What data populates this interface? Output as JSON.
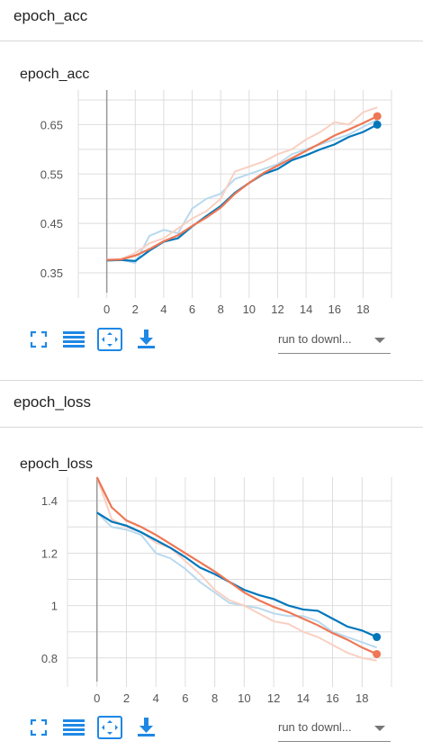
{
  "sections": [
    {
      "header": "epoch_acc",
      "card_title": "epoch_acc",
      "run_select": "run to downl..."
    },
    {
      "header": "epoch_loss",
      "card_title": "epoch_loss",
      "run_select": "run to downl..."
    }
  ],
  "toolbar": {
    "icons": [
      "fullscreen-icon",
      "list-icon",
      "fit-domain-icon",
      "download-icon"
    ]
  },
  "colors": {
    "blue": "#0077bb",
    "orange": "#ee7755",
    "blue_light": "#b9d9ee",
    "orange_light": "#f8d0c2",
    "grid": "#dddddd"
  },
  "chart_data": [
    {
      "type": "line",
      "title": "epoch_acc",
      "x": [
        0,
        1,
        2,
        3,
        4,
        5,
        6,
        7,
        8,
        9,
        10,
        11,
        12,
        13,
        14,
        15,
        16,
        17,
        18,
        19
      ],
      "x_ticks": [
        "0",
        "2",
        "4",
        "6",
        "8",
        "10",
        "12",
        "14",
        "16",
        "18"
      ],
      "y_ticks": [
        "0.35",
        "0.45",
        "0.55",
        "0.65"
      ],
      "xlim": [
        -2,
        20
      ],
      "ylim": [
        0.31,
        0.72
      ],
      "grid": true,
      "series": [
        {
          "color": "#0077bb",
          "smoothed": [
            0.375,
            0.376,
            0.374,
            0.395,
            0.413,
            0.42,
            0.444,
            0.465,
            0.485,
            0.512,
            0.532,
            0.55,
            0.56,
            0.578,
            0.588,
            0.6,
            0.61,
            0.625,
            0.635,
            0.65
          ],
          "raw": [
            0.375,
            0.377,
            0.37,
            0.425,
            0.437,
            0.43,
            0.48,
            0.5,
            0.51,
            0.54,
            0.55,
            0.56,
            0.57,
            0.59,
            0.6,
            0.61,
            0.62,
            0.63,
            0.645,
            0.66
          ]
        },
        {
          "color": "#ee7755",
          "smoothed": [
            0.376,
            0.377,
            0.385,
            0.398,
            0.414,
            0.426,
            0.445,
            0.462,
            0.482,
            0.51,
            0.532,
            0.552,
            0.567,
            0.582,
            0.597,
            0.612,
            0.628,
            0.64,
            0.653,
            0.667
          ],
          "raw": [
            0.377,
            0.378,
            0.39,
            0.41,
            0.42,
            0.44,
            0.46,
            0.475,
            0.5,
            0.555,
            0.565,
            0.575,
            0.59,
            0.6,
            0.62,
            0.635,
            0.655,
            0.65,
            0.675,
            0.685
          ]
        }
      ]
    },
    {
      "type": "line",
      "title": "epoch_loss",
      "x": [
        0,
        1,
        2,
        3,
        4,
        5,
        6,
        7,
        8,
        9,
        10,
        11,
        12,
        13,
        14,
        15,
        16,
        17,
        18,
        19
      ],
      "x_ticks": [
        "0",
        "2",
        "4",
        "6",
        "8",
        "10",
        "12",
        "14",
        "16",
        "18"
      ],
      "y_ticks": [
        "0.8",
        "1",
        "1.2",
        "1.4"
      ],
      "xlim": [
        -2,
        20
      ],
      "ylim": [
        0.71,
        1.49
      ],
      "grid": true,
      "series": [
        {
          "color": "#0077bb",
          "smoothed": [
            1.355,
            1.32,
            1.305,
            1.28,
            1.25,
            1.22,
            1.185,
            1.145,
            1.12,
            1.09,
            1.06,
            1.04,
            1.025,
            1.0,
            0.985,
            0.98,
            0.95,
            0.92,
            0.905,
            0.88
          ],
          "raw": [
            1.355,
            1.3,
            1.29,
            1.27,
            1.2,
            1.18,
            1.14,
            1.09,
            1.05,
            1.01,
            1.0,
            0.99,
            0.97,
            0.96,
            0.96,
            0.94,
            0.9,
            0.88,
            0.86,
            0.84
          ]
        },
        {
          "color": "#ee7755",
          "smoothed": [
            1.49,
            1.375,
            1.325,
            1.3,
            1.27,
            1.235,
            1.2,
            1.165,
            1.13,
            1.09,
            1.05,
            1.02,
            0.995,
            0.975,
            0.95,
            0.925,
            0.895,
            0.87,
            0.84,
            0.815
          ],
          "raw": [
            1.49,
            1.33,
            1.3,
            1.28,
            1.24,
            1.22,
            1.17,
            1.12,
            1.06,
            1.02,
            1.0,
            0.97,
            0.94,
            0.93,
            0.9,
            0.88,
            0.85,
            0.82,
            0.8,
            0.79
          ]
        }
      ]
    }
  ]
}
